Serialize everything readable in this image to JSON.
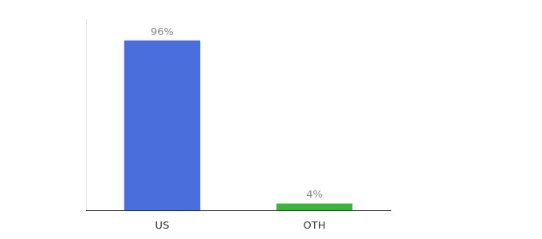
{
  "chart_data": {
    "type": "bar",
    "categories": [
      "US",
      "OTH"
    ],
    "values": [
      96,
      4
    ],
    "value_labels": [
      "96%",
      "4%"
    ],
    "colors": [
      "#4a6edb",
      "#3cb43c"
    ],
    "ylim": [
      0,
      108
    ],
    "grid": false,
    "data_labels": true,
    "tick_labels": "x"
  }
}
